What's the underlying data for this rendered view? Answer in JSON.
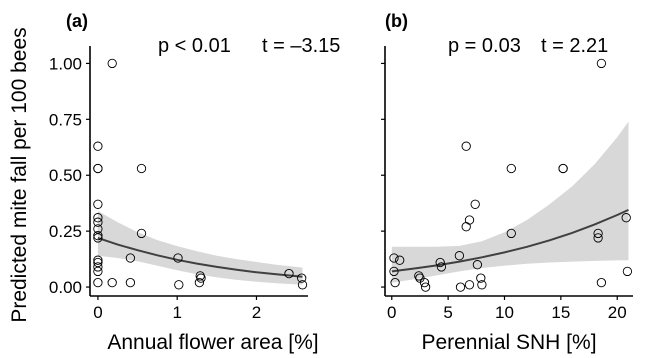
{
  "chart_data": [
    {
      "panel_label": "(a)",
      "type": "scatter",
      "stats": {
        "p": "p < 0.01",
        "t": "t = –3.15"
      },
      "xlabel": "Annual flower area [%]",
      "ylabel": "Predicted mite fall per 100 bees",
      "xlim": [
        -0.1,
        2.65
      ],
      "ylim": [
        -0.04,
        1.06
      ],
      "xticks": [
        0,
        1,
        2
      ],
      "yticks": [
        0.0,
        0.25,
        0.5,
        0.75,
        1.0
      ],
      "ytick_labels": [
        "0.00",
        "0.25",
        "0.50",
        "0.75",
        "1.00"
      ],
      "points": [
        {
          "x": 0.0,
          "y": 0.63
        },
        {
          "x": 0.0,
          "y": 0.53
        },
        {
          "x": 0.0,
          "y": 0.53
        },
        {
          "x": 0.0,
          "y": 0.37
        },
        {
          "x": 0.0,
          "y": 0.31
        },
        {
          "x": 0.0,
          "y": 0.29
        },
        {
          "x": 0.0,
          "y": 0.26
        },
        {
          "x": 0.0,
          "y": 0.23
        },
        {
          "x": 0.0,
          "y": 0.22
        },
        {
          "x": 0.0,
          "y": 0.12
        },
        {
          "x": 0.0,
          "y": 0.11
        },
        {
          "x": 0.0,
          "y": 0.09
        },
        {
          "x": 0.0,
          "y": 0.07
        },
        {
          "x": 0.0,
          "y": 0.02
        },
        {
          "x": 0.18,
          "y": 1.0
        },
        {
          "x": 0.18,
          "y": 0.02
        },
        {
          "x": 0.41,
          "y": 0.13
        },
        {
          "x": 0.41,
          "y": 0.02
        },
        {
          "x": 0.55,
          "y": 0.53
        },
        {
          "x": 0.55,
          "y": 0.24
        },
        {
          "x": 1.01,
          "y": 0.13
        },
        {
          "x": 1.02,
          "y": 0.01
        },
        {
          "x": 1.29,
          "y": 0.05
        },
        {
          "x": 1.28,
          "y": 0.02
        },
        {
          "x": 1.3,
          "y": 0.04
        },
        {
          "x": 2.41,
          "y": 0.06
        },
        {
          "x": 2.57,
          "y": 0.04
        },
        {
          "x": 2.58,
          "y": 0.01
        }
      ],
      "fit": {
        "x": [
          0.0,
          0.25,
          0.5,
          0.75,
          1.0,
          1.25,
          1.5,
          1.75,
          2.0,
          2.25,
          2.5,
          2.58
        ],
        "y": [
          0.22,
          0.19,
          0.165,
          0.142,
          0.122,
          0.105,
          0.09,
          0.077,
          0.066,
          0.057,
          0.049,
          0.046
        ],
        "lower": [
          0.14,
          0.13,
          0.115,
          0.095,
          0.075,
          0.057,
          0.043,
          0.032,
          0.024,
          0.017,
          0.012,
          0.011
        ],
        "upper": [
          0.34,
          0.29,
          0.245,
          0.21,
          0.183,
          0.16,
          0.14,
          0.125,
          0.112,
          0.1,
          0.09,
          0.087
        ]
      }
    },
    {
      "panel_label": "(b)",
      "type": "scatter",
      "stats": {
        "p": "p = 0.03",
        "t": "t = 2.21"
      },
      "xlabel": "Perennial SNH [%]",
      "ylabel": "",
      "xlim": [
        -0.6,
        21.4
      ],
      "ylim": [
        -0.04,
        1.06
      ],
      "xticks": [
        0,
        5,
        10,
        15,
        20
      ],
      "yticks": [
        0.0,
        0.25,
        0.5,
        0.75,
        1.0
      ],
      "points": [
        {
          "x": 0.2,
          "y": 0.13
        },
        {
          "x": 0.2,
          "y": 0.07
        },
        {
          "x": 0.3,
          "y": 0.02
        },
        {
          "x": 0.7,
          "y": 0.12
        },
        {
          "x": 2.4,
          "y": 0.05
        },
        {
          "x": 2.5,
          "y": 0.04
        },
        {
          "x": 2.9,
          "y": 0.02
        },
        {
          "x": 3.0,
          "y": 0.0
        },
        {
          "x": 4.3,
          "y": 0.11
        },
        {
          "x": 4.4,
          "y": 0.09
        },
        {
          "x": 6.0,
          "y": 0.14
        },
        {
          "x": 6.1,
          "y": 0.0
        },
        {
          "x": 6.6,
          "y": 0.63
        },
        {
          "x": 6.6,
          "y": 0.27
        },
        {
          "x": 6.9,
          "y": 0.3
        },
        {
          "x": 6.9,
          "y": 0.01
        },
        {
          "x": 7.4,
          "y": 0.37
        },
        {
          "x": 7.6,
          "y": 0.1
        },
        {
          "x": 7.9,
          "y": 0.04
        },
        {
          "x": 8.0,
          "y": 0.01
        },
        {
          "x": 10.6,
          "y": 0.53
        },
        {
          "x": 10.6,
          "y": 0.24
        },
        {
          "x": 15.2,
          "y": 0.53
        },
        {
          "x": 15.2,
          "y": 0.53
        },
        {
          "x": 18.3,
          "y": 0.24
        },
        {
          "x": 18.3,
          "y": 0.22
        },
        {
          "x": 18.6,
          "y": 1.0
        },
        {
          "x": 18.6,
          "y": 0.02
        },
        {
          "x": 20.8,
          "y": 0.31
        },
        {
          "x": 20.9,
          "y": 0.07
        }
      ],
      "fit": {
        "x": [
          0,
          2,
          4,
          6,
          8,
          10,
          12,
          14,
          16,
          18,
          20,
          21
        ],
        "y": [
          0.07,
          0.083,
          0.097,
          0.114,
          0.133,
          0.155,
          0.18,
          0.209,
          0.242,
          0.28,
          0.322,
          0.345
        ],
        "lower": [
          0.02,
          0.035,
          0.052,
          0.07,
          0.085,
          0.096,
          0.104,
          0.11,
          0.114,
          0.117,
          0.119,
          0.12
        ],
        "upper": [
          0.18,
          0.18,
          0.18,
          0.184,
          0.205,
          0.245,
          0.3,
          0.37,
          0.45,
          0.55,
          0.67,
          0.74
        ]
      }
    }
  ],
  "colors": {
    "band": "#d7d8d7",
    "fit_line": "#404040",
    "points": "#000000",
    "axis": "#000000"
  }
}
